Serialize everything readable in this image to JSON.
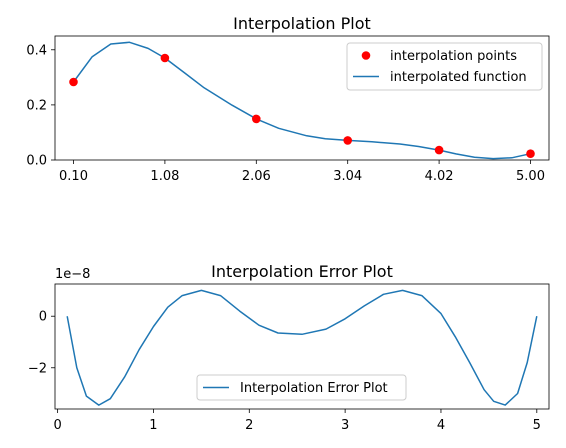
{
  "chart_data": [
    {
      "type": "scatter",
      "title": "Interpolation Plot",
      "xlabel": "",
      "ylabel": "",
      "xlim": [
        0.1,
        5.0
      ],
      "ylim": [
        0.0,
        0.45
      ],
      "xticks": [
        "0.10",
        "1.08",
        "2.06",
        "3.04",
        "4.02",
        "5.00"
      ],
      "yticks": [
        "0.0",
        "0.2",
        "0.4"
      ],
      "legend_position": "top-right",
      "grid": false,
      "series": [
        {
          "name": "interpolation points",
          "kind": "scatter",
          "color": "#ff0000",
          "x": [
            0.1,
            1.08,
            2.06,
            3.04,
            4.02,
            5.0
          ],
          "y": [
            0.283,
            0.37,
            0.149,
            0.071,
            0.036,
            0.023
          ]
        },
        {
          "name": "interpolated function",
          "kind": "line",
          "color": "#1f77b4",
          "x": [
            0.1,
            0.3,
            0.5,
            0.7,
            0.9,
            1.08,
            1.3,
            1.5,
            1.8,
            2.06,
            2.3,
            2.6,
            2.8,
            3.04,
            3.3,
            3.6,
            3.8,
            4.02,
            4.2,
            4.4,
            4.6,
            4.8,
            5.0
          ],
          "y": [
            0.283,
            0.375,
            0.421,
            0.427,
            0.405,
            0.37,
            0.314,
            0.262,
            0.199,
            0.149,
            0.115,
            0.088,
            0.077,
            0.071,
            0.066,
            0.058,
            0.049,
            0.036,
            0.022,
            0.01,
            0.005,
            0.008,
            0.023
          ]
        }
      ]
    },
    {
      "type": "line",
      "title": "Interpolation Error Plot",
      "xlabel": "",
      "ylabel": "",
      "offset_label": "1e−8",
      "xlim": [
        0.1,
        5.0
      ],
      "ylim": [
        -3.6,
        1.25
      ],
      "xticks": [
        "0",
        "1",
        "2",
        "3",
        "4",
        "5"
      ],
      "yticks": [
        "0",
        "−2"
      ],
      "legend_position": "lower center",
      "grid": false,
      "series": [
        {
          "name": "Interpolation Error Plot",
          "kind": "line",
          "color": "#1f77b4",
          "x": [
            0.1,
            0.2,
            0.3,
            0.43,
            0.55,
            0.7,
            0.85,
            1.0,
            1.15,
            1.3,
            1.5,
            1.7,
            1.9,
            2.1,
            2.3,
            2.55,
            2.8,
            3.0,
            3.2,
            3.4,
            3.6,
            3.8,
            4.0,
            4.15,
            4.3,
            4.45,
            4.55,
            4.67,
            4.8,
            4.9,
            5.0
          ],
          "y": [
            0.0,
            -2.0,
            -3.1,
            -3.45,
            -3.2,
            -2.35,
            -1.3,
            -0.4,
            0.35,
            0.8,
            1.0,
            0.8,
            0.2,
            -0.35,
            -0.65,
            -0.7,
            -0.5,
            -0.1,
            0.4,
            0.85,
            1.0,
            0.8,
            0.1,
            -0.8,
            -1.8,
            -2.85,
            -3.3,
            -3.45,
            -3.0,
            -1.8,
            0.0
          ]
        }
      ]
    }
  ]
}
